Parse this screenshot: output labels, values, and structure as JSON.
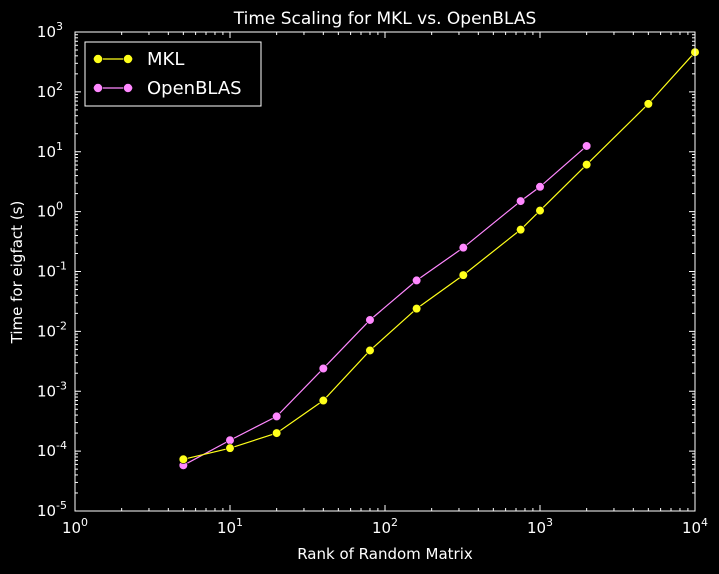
{
  "chart_data": {
    "type": "line",
    "title": "Time Scaling for MKL vs. OpenBLAS",
    "xlabel": "Rank of Random Matrix",
    "ylabel": "Time for eigfact (s)",
    "xscale": "log",
    "yscale": "log",
    "xlim": [
      1,
      10000
    ],
    "ylim": [
      1e-05,
      1000
    ],
    "x_ticks": [
      {
        "value": 1,
        "base": "10",
        "exp": "0"
      },
      {
        "value": 10,
        "base": "10",
        "exp": "1"
      },
      {
        "value": 100,
        "base": "10",
        "exp": "2"
      },
      {
        "value": 1000,
        "base": "10",
        "exp": "3"
      },
      {
        "value": 10000,
        "base": "10",
        "exp": "4"
      }
    ],
    "y_ticks": [
      {
        "value": 1e-05,
        "base": "10",
        "exp": "-5"
      },
      {
        "value": 0.0001,
        "base": "10",
        "exp": "-4"
      },
      {
        "value": 0.001,
        "base": "10",
        "exp": "-3"
      },
      {
        "value": 0.01,
        "base": "10",
        "exp": "-2"
      },
      {
        "value": 0.1,
        "base": "10",
        "exp": "-1"
      },
      {
        "value": 1,
        "base": "10",
        "exp": "0"
      },
      {
        "value": 10,
        "base": "10",
        "exp": "1"
      },
      {
        "value": 100,
        "base": "10",
        "exp": "2"
      },
      {
        "value": 1000,
        "base": "10",
        "exp": "3"
      }
    ],
    "legend_position": "top-left",
    "series": [
      {
        "name": "MKL",
        "color": "#ffff1a",
        "x": [
          5,
          10,
          20,
          40,
          80,
          160,
          320,
          750,
          1000,
          2000,
          5000,
          10000
        ],
        "y": [
          7.3e-05,
          0.000112,
          0.0002,
          0.0007,
          0.0048,
          0.024,
          0.087,
          0.5,
          1.04,
          6.1,
          63,
          460
        ]
      },
      {
        "name": "OpenBLAS",
        "color": "#ff88ff",
        "x": [
          5,
          10,
          20,
          40,
          80,
          160,
          320,
          750,
          1000,
          2000
        ],
        "y": [
          5.8e-05,
          0.000152,
          0.00038,
          0.0024,
          0.0155,
          0.071,
          0.25,
          1.5,
          2.6,
          12.5
        ]
      }
    ]
  }
}
